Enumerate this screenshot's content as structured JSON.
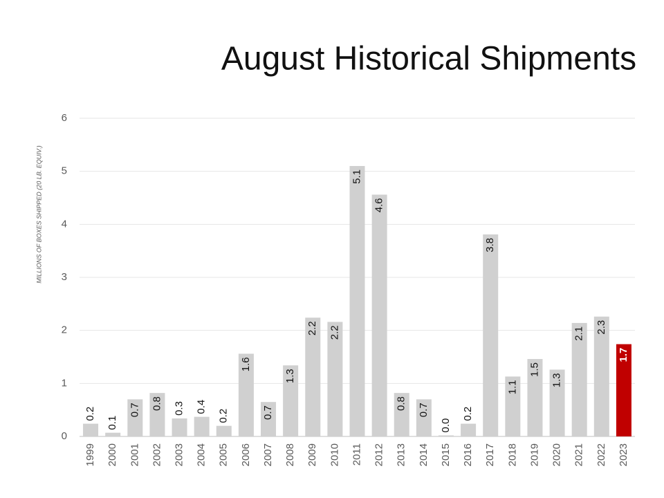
{
  "chart_data": {
    "type": "bar",
    "title": "August Historical Shipments",
    "y_axis_label": "MILLIONS OF BOXES SHIPPED (20 LB. EQUIV.)",
    "categories": [
      "1999",
      "2000",
      "2001",
      "2002",
      "2003",
      "2004",
      "2005",
      "2006",
      "2007",
      "2008",
      "2009",
      "2010",
      "2011",
      "2012",
      "2013",
      "2014",
      "2015",
      "2016",
      "2017",
      "2018",
      "2019",
      "2020",
      "2021",
      "2022",
      "2023"
    ],
    "values": [
      0.24,
      0.07,
      0.7,
      0.82,
      0.34,
      0.37,
      0.2,
      1.56,
      0.65,
      1.34,
      2.24,
      2.16,
      5.1,
      4.56,
      0.82,
      0.7,
      0.02,
      0.24,
      3.81,
      1.13,
      1.46,
      1.26,
      2.14,
      2.26,
      1.74
    ],
    "value_labels": [
      "0.2",
      "0.1",
      "0.7",
      "0.8",
      "0.3",
      "0.4",
      "0.2",
      "1.6",
      "0.7",
      "1.3",
      "2.2",
      "2.2",
      "5.1",
      "4.6",
      "0.8",
      "0.7",
      "0.0",
      "0.2",
      "3.8",
      "1.1",
      "1.5",
      "1.3",
      "2.1",
      "2.3",
      "1.7"
    ],
    "colors": [
      "#d0d0d0",
      "#d0d0d0",
      "#d0d0d0",
      "#d0d0d0",
      "#d0d0d0",
      "#d0d0d0",
      "#d0d0d0",
      "#d0d0d0",
      "#d0d0d0",
      "#d0d0d0",
      "#d0d0d0",
      "#d0d0d0",
      "#d0d0d0",
      "#d0d0d0",
      "#d0d0d0",
      "#d0d0d0",
      "#d0d0d0",
      "#d0d0d0",
      "#d0d0d0",
      "#d0d0d0",
      "#d0d0d0",
      "#d0d0d0",
      "#d0d0d0",
      "#d0d0d0",
      "#c00000"
    ],
    "ylim": [
      0,
      6
    ],
    "yticks": [
      0,
      1,
      2,
      3,
      4,
      5,
      6
    ],
    "grid": true
  }
}
